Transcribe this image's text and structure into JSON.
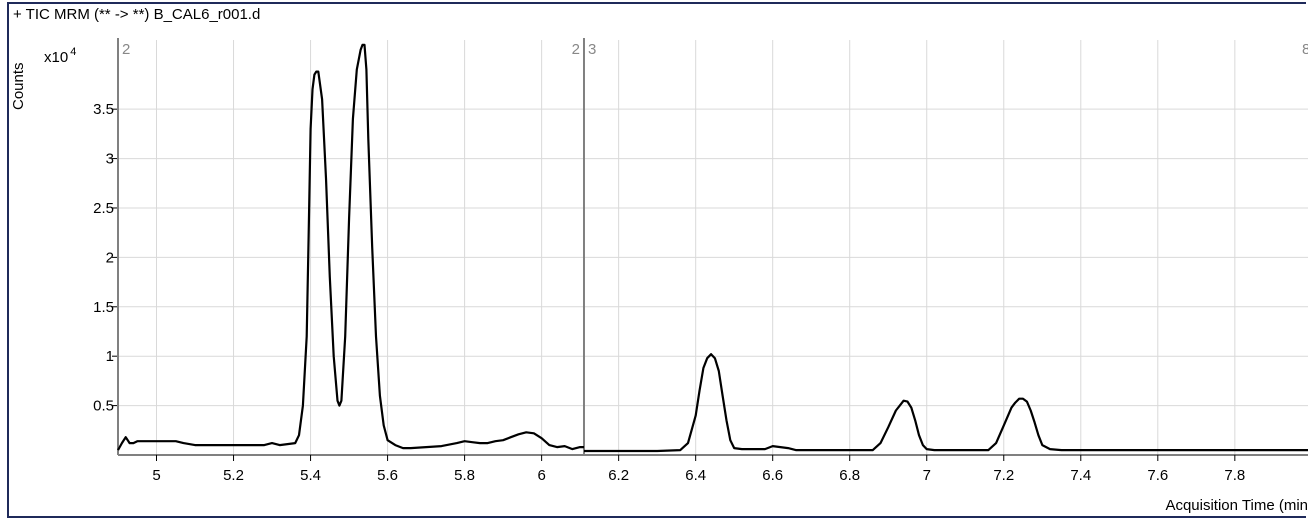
{
  "chart_data": {
    "type": "line",
    "title": "+ TIC MRM (** -> **) B_CAL6_r001.d",
    "ylabel": "Counts",
    "y_scale_label": "x10",
    "y_scale_exponent": "4",
    "xlabel": "Acquisition Time (min",
    "xlim": [
      4.9,
      7.99
    ],
    "ylim": [
      0,
      4.2
    ],
    "x_ticks": [
      "5",
      "5.2",
      "5.4",
      "5.6",
      "5.8",
      "6",
      "6.2",
      "6.4",
      "6.6",
      "6.8",
      "7",
      "7.2",
      "7.4",
      "7.6",
      "7.8"
    ],
    "y_ticks": [
      "0.5",
      "1",
      "1.5",
      "2",
      "2.5",
      "3",
      "3.5"
    ],
    "grid": true,
    "segment_markers": [
      {
        "x": 4.9,
        "left_label": "",
        "right_label": "2"
      },
      {
        "x": 6.11,
        "left_label": "2",
        "right_label": "3"
      }
    ],
    "edge_label": "8",
    "series": [
      {
        "x": [
          4.9,
          4.91,
          4.92,
          4.93,
          4.94,
          4.95,
          5.0,
          5.05,
          5.07,
          5.1,
          5.2,
          5.28,
          5.3,
          5.32,
          5.36,
          5.37,
          5.38,
          5.39,
          5.395,
          5.4,
          5.405,
          5.41,
          5.415,
          5.42,
          5.43,
          5.44,
          5.45,
          5.46,
          5.47,
          5.475,
          5.48,
          5.49,
          5.5,
          5.51,
          5.52,
          5.53,
          5.535,
          5.54,
          5.545,
          5.55,
          5.56,
          5.57,
          5.58,
          5.59,
          5.6,
          5.62,
          5.64,
          5.66,
          5.7,
          5.74,
          5.78,
          5.8,
          5.82,
          5.84,
          5.86,
          5.88,
          5.9,
          5.92,
          5.94,
          5.96,
          5.98,
          6.0,
          6.02,
          6.04,
          6.06,
          6.08,
          6.1,
          6.11
        ],
        "y": [
          0.05,
          0.12,
          0.18,
          0.12,
          0.12,
          0.14,
          0.14,
          0.14,
          0.12,
          0.1,
          0.1,
          0.1,
          0.12,
          0.1,
          0.12,
          0.2,
          0.5,
          1.2,
          2.2,
          3.3,
          3.7,
          3.85,
          3.88,
          3.88,
          3.6,
          2.8,
          1.8,
          1.0,
          0.55,
          0.5,
          0.55,
          1.2,
          2.4,
          3.4,
          3.9,
          4.1,
          4.15,
          4.15,
          3.9,
          3.2,
          2.1,
          1.2,
          0.6,
          0.3,
          0.15,
          0.1,
          0.07,
          0.07,
          0.08,
          0.09,
          0.12,
          0.14,
          0.13,
          0.12,
          0.12,
          0.14,
          0.15,
          0.18,
          0.21,
          0.23,
          0.22,
          0.17,
          0.1,
          0.08,
          0.09,
          0.06,
          0.08,
          0.08
        ]
      },
      {
        "x": [
          6.11,
          6.15,
          6.2,
          6.3,
          6.36,
          6.38,
          6.4,
          6.41,
          6.42,
          6.43,
          6.44,
          6.45,
          6.46,
          6.47,
          6.48,
          6.49,
          6.5,
          6.52,
          6.55,
          6.58,
          6.6,
          6.62,
          6.64,
          6.66,
          6.7,
          6.8,
          6.86,
          6.88,
          6.9,
          6.92,
          6.93,
          6.94,
          6.95,
          6.96,
          6.97,
          6.98,
          6.99,
          7.0,
          7.02,
          7.05,
          7.1,
          7.16,
          7.18,
          7.2,
          7.22,
          7.23,
          7.24,
          7.25,
          7.26,
          7.27,
          7.28,
          7.29,
          7.3,
          7.32,
          7.35,
          7.4,
          7.6,
          7.8,
          7.99
        ],
        "y": [
          0.04,
          0.04,
          0.04,
          0.04,
          0.05,
          0.12,
          0.4,
          0.65,
          0.88,
          0.98,
          1.02,
          0.98,
          0.85,
          0.6,
          0.35,
          0.15,
          0.07,
          0.06,
          0.06,
          0.06,
          0.09,
          0.08,
          0.07,
          0.05,
          0.05,
          0.05,
          0.05,
          0.12,
          0.28,
          0.45,
          0.5,
          0.55,
          0.54,
          0.48,
          0.35,
          0.2,
          0.1,
          0.06,
          0.05,
          0.05,
          0.05,
          0.05,
          0.12,
          0.3,
          0.48,
          0.53,
          0.57,
          0.57,
          0.54,
          0.45,
          0.33,
          0.2,
          0.1,
          0.06,
          0.05,
          0.05,
          0.05,
          0.05,
          0.05
        ]
      }
    ]
  }
}
